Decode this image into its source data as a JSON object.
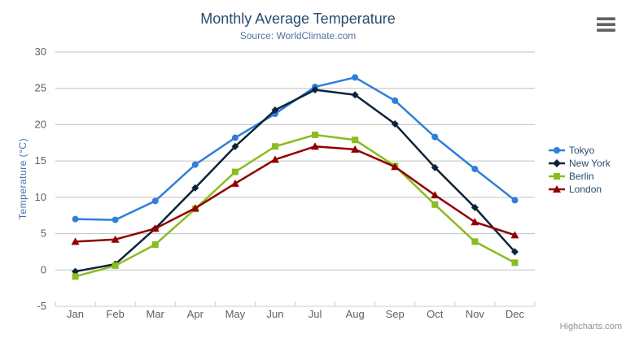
{
  "chart_data": {
    "type": "line",
    "title": "Monthly Average Temperature",
    "subtitle": "Source: WorldClimate.com",
    "xlabel": "",
    "ylabel": "Temperature (°C)",
    "ylim": [
      -5,
      30
    ],
    "yticks": [
      -5,
      0,
      5,
      10,
      15,
      20,
      25,
      30
    ],
    "grid": "horizontal",
    "legend_position": "right",
    "categories": [
      "Jan",
      "Feb",
      "Mar",
      "Apr",
      "May",
      "Jun",
      "Jul",
      "Aug",
      "Sep",
      "Oct",
      "Nov",
      "Dec"
    ],
    "series": [
      {
        "name": "Tokyo",
        "color": "#2f7ed8",
        "marker": "circle",
        "values": [
          7.0,
          6.9,
          9.5,
          14.5,
          18.2,
          21.5,
          25.2,
          26.5,
          23.3,
          18.3,
          13.9,
          9.6
        ]
      },
      {
        "name": "New York",
        "color": "#0d233a",
        "marker": "diamond",
        "values": [
          -0.2,
          0.8,
          5.7,
          11.3,
          17.0,
          22.0,
          24.8,
          24.1,
          20.1,
          14.1,
          8.6,
          2.5
        ]
      },
      {
        "name": "Berlin",
        "color": "#8bbc21",
        "marker": "square",
        "values": [
          -0.9,
          0.6,
          3.5,
          8.4,
          13.5,
          17.0,
          18.6,
          17.9,
          14.3,
          9.0,
          3.9,
          1.0
        ]
      },
      {
        "name": "London",
        "color": "#910000",
        "marker": "triangle",
        "values": [
          3.9,
          4.2,
          5.7,
          8.5,
          11.9,
          15.2,
          17.0,
          16.6,
          14.2,
          10.3,
          6.6,
          4.8
        ]
      }
    ]
  },
  "credits": {
    "label": "Highcharts.com"
  },
  "colors": {
    "title": "#274b6d",
    "subtitle": "#4d759e",
    "axis_label": "#606060",
    "axis_title": "#4572a7",
    "legend_text": "#274b6d",
    "grid": "#c0c0c0",
    "axis_line": "#c0d0e0",
    "credits": "#909090"
  }
}
